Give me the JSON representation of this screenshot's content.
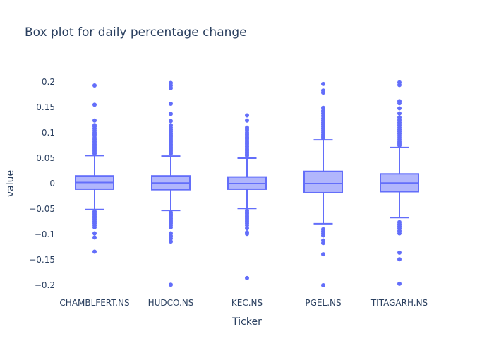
{
  "chart_data": {
    "type": "box",
    "title": "Box plot for daily percentage change",
    "xlabel": "Ticker",
    "ylabel": "value",
    "ylim": [
      -0.21,
      0.21
    ],
    "yticks": [
      0.2,
      0.15,
      0.1,
      0.05,
      0,
      -0.05,
      -0.1,
      -0.15,
      -0.2
    ],
    "ytick_labels": [
      "0.2",
      "0.15",
      "0.1",
      "0.05",
      "0",
      "−0.05",
      "−0.1",
      "−0.15",
      "−0.2"
    ],
    "grid": false,
    "color": "#636efa",
    "fill_color": "rgba(99,110,250,0.5)",
    "categories": [
      "CHAMBLFERT.NS",
      "HUDCO.NS",
      "KEC.NS",
      "PGEL.NS",
      "TITAGARH.NS"
    ],
    "boxes": [
      {
        "name": "CHAMBLFERT.NS",
        "q1": -0.011,
        "median": 0.002,
        "q3": 0.015,
        "lower_fence": -0.051,
        "upper_fence": 0.055,
        "outliers": [
          0.193,
          0.155,
          0.124,
          0.115,
          0.112,
          0.108,
          0.104,
          0.1,
          0.097,
          0.094,
          0.09,
          0.087,
          0.083,
          0.08,
          0.077,
          0.074,
          0.071,
          0.068,
          0.065,
          0.062,
          0.059,
          -0.055,
          -0.058,
          -0.061,
          -0.064,
          -0.067,
          -0.07,
          -0.074,
          -0.078,
          -0.082,
          -0.086,
          -0.098,
          -0.106,
          -0.134
        ]
      },
      {
        "name": "HUDCO.NS",
        "q1": -0.012,
        "median": 0.001,
        "q3": 0.015,
        "lower_fence": -0.053,
        "upper_fence": 0.054,
        "outliers": [
          0.198,
          0.193,
          0.188,
          0.157,
          0.137,
          0.123,
          0.115,
          0.11,
          0.106,
          0.102,
          0.098,
          0.095,
          0.092,
          0.089,
          0.086,
          0.083,
          0.08,
          0.077,
          0.074,
          0.071,
          0.068,
          0.065,
          0.062,
          0.059,
          -0.057,
          -0.06,
          -0.063,
          -0.066,
          -0.069,
          -0.072,
          -0.075,
          -0.078,
          -0.082,
          -0.086,
          -0.098,
          -0.103,
          -0.108,
          -0.114,
          -0.199
        ]
      },
      {
        "name": "KEC.NS",
        "q1": -0.011,
        "median": 0.0,
        "q3": 0.013,
        "lower_fence": -0.049,
        "upper_fence": 0.05,
        "outliers": [
          0.134,
          0.124,
          0.11,
          0.107,
          0.104,
          0.1,
          0.097,
          0.094,
          0.091,
          0.088,
          0.085,
          0.082,
          0.079,
          0.076,
          0.073,
          0.07,
          0.067,
          0.064,
          0.061,
          0.058,
          0.055,
          -0.053,
          -0.056,
          -0.059,
          -0.062,
          -0.065,
          -0.068,
          -0.071,
          -0.074,
          -0.078,
          -0.082,
          -0.088,
          -0.096,
          -0.099,
          -0.186
        ]
      },
      {
        "name": "PGEL.NS",
        "q1": -0.018,
        "median": 0.0,
        "q3": 0.024,
        "lower_fence": -0.079,
        "upper_fence": 0.086,
        "outliers": [
          0.196,
          0.183,
          0.179,
          0.149,
          0.143,
          0.138,
          0.133,
          0.128,
          0.124,
          0.12,
          0.116,
          0.112,
          0.108,
          0.104,
          0.1,
          0.096,
          0.092,
          0.089,
          -0.09,
          -0.094,
          -0.098,
          -0.102,
          -0.112,
          -0.117,
          -0.139,
          -0.2
        ]
      },
      {
        "name": "TITAGARH.NS",
        "q1": -0.016,
        "median": 0.001,
        "q3": 0.019,
        "lower_fence": -0.067,
        "upper_fence": 0.071,
        "outliers": [
          0.199,
          0.194,
          0.162,
          0.158,
          0.148,
          0.138,
          0.13,
          0.125,
          0.12,
          0.115,
          0.11,
          0.106,
          0.102,
          0.098,
          0.094,
          0.09,
          0.086,
          0.082,
          0.078,
          0.075,
          -0.076,
          -0.08,
          -0.084,
          -0.088,
          -0.093,
          -0.098,
          -0.136,
          -0.149,
          -0.197
        ]
      }
    ]
  }
}
